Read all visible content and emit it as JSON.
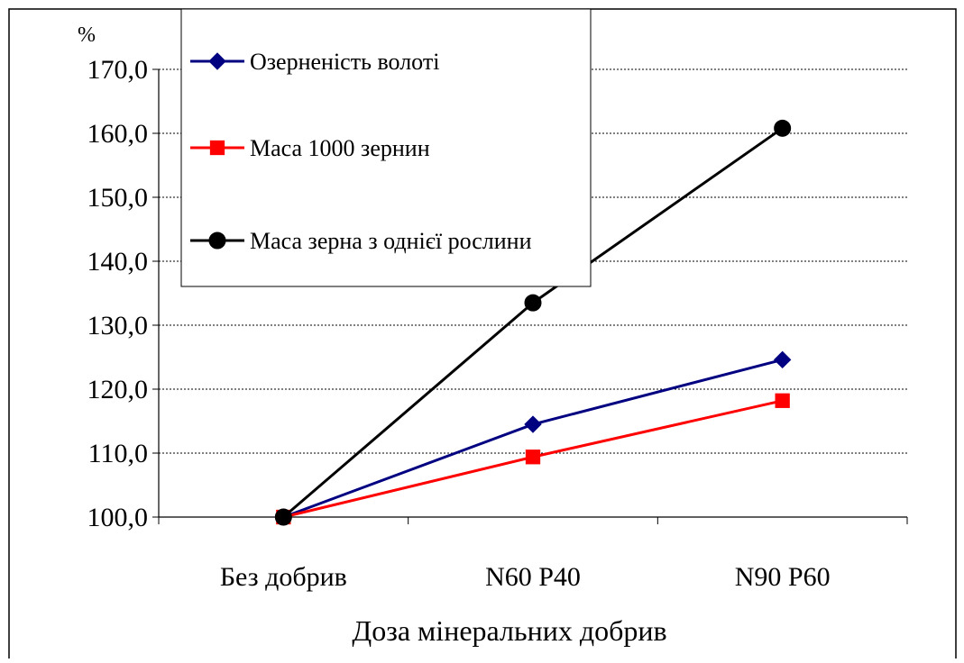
{
  "chart_data": {
    "type": "line",
    "categories": [
      "Без добрив",
      "N60 P40",
      "N90 P60"
    ],
    "series": [
      {
        "name": "Озерненість волоті",
        "values": [
          100.0,
          114.5,
          124.6
        ],
        "color": "#000080",
        "marker": "diamond"
      },
      {
        "name": "Маса 1000 зернин",
        "values": [
          100.0,
          109.4,
          118.2
        ],
        "color": "#ff0000",
        "marker": "square"
      },
      {
        "name": "Маса зерна з однієї рослини",
        "values": [
          100.0,
          133.5,
          160.8
        ],
        "color": "#000000",
        "marker": "circle"
      }
    ],
    "xlabel": "Доза мінеральних добрив",
    "ylabel": "%",
    "ylim": [
      100,
      170
    ],
    "yticks": [
      "100,0",
      "110,0",
      "120,0",
      "130,0",
      "140,0",
      "150,0",
      "160,0",
      "170,0"
    ],
    "grid": true,
    "legend_position": "top-left"
  }
}
